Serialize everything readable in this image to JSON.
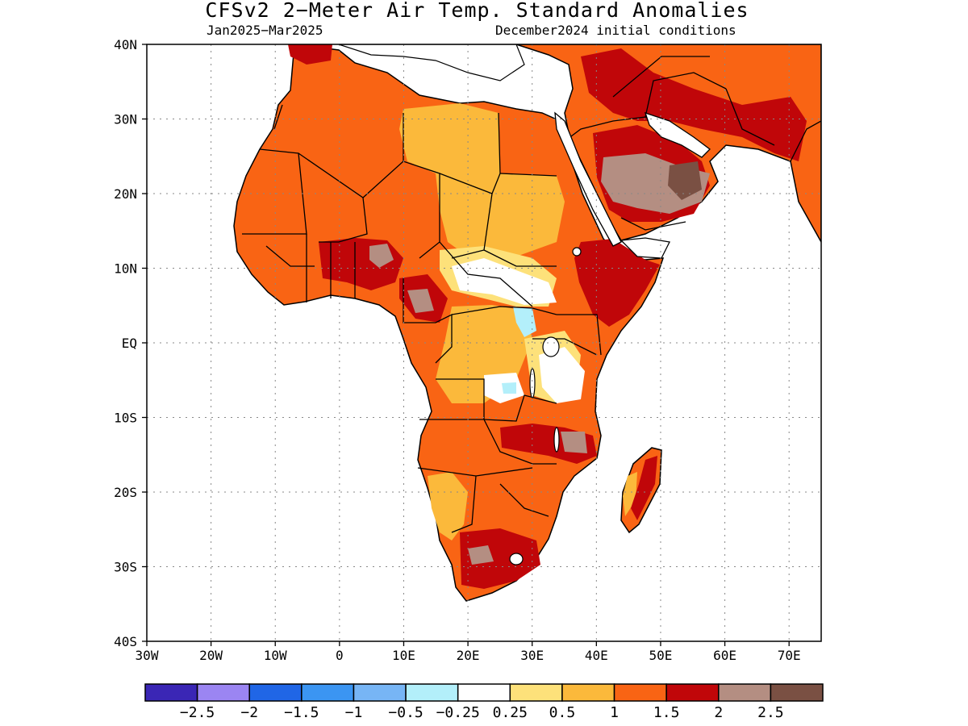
{
  "title": "CFSv2 2−Meter Air Temp. Standard Anomalies",
  "period": "Jan2025−Mar2025",
  "initial_conditions": "December2024 initial conditions",
  "map": {
    "lon_range": [
      -30,
      75
    ],
    "lat_range": [
      -40,
      40
    ],
    "y_ticks": [
      "40N",
      "30N",
      "20N",
      "10N",
      "EQ",
      "10S",
      "20S",
      "30S",
      "40S"
    ],
    "x_ticks": [
      "30W",
      "20W",
      "10W",
      "0",
      "10E",
      "20E",
      "30E",
      "40E",
      "50E",
      "60E",
      "70E"
    ],
    "gridlines": "dotted"
  },
  "legend": {
    "colors": [
      "#3a26b5",
      "#9b85f2",
      "#2066e6",
      "#3b95f2",
      "#77b5f5",
      "#b3effa",
      "#ffffff",
      "#fde17a",
      "#fbb93b",
      "#f96414",
      "#c00609",
      "#b48e82",
      "#7a5043"
    ],
    "labels": [
      "−2.5",
      "−2",
      "−1.5",
      "−1",
      "−0.5",
      "−0.25",
      "0.25",
      "0.5",
      "1",
      "1.5",
      "2",
      "2.5"
    ]
  }
}
